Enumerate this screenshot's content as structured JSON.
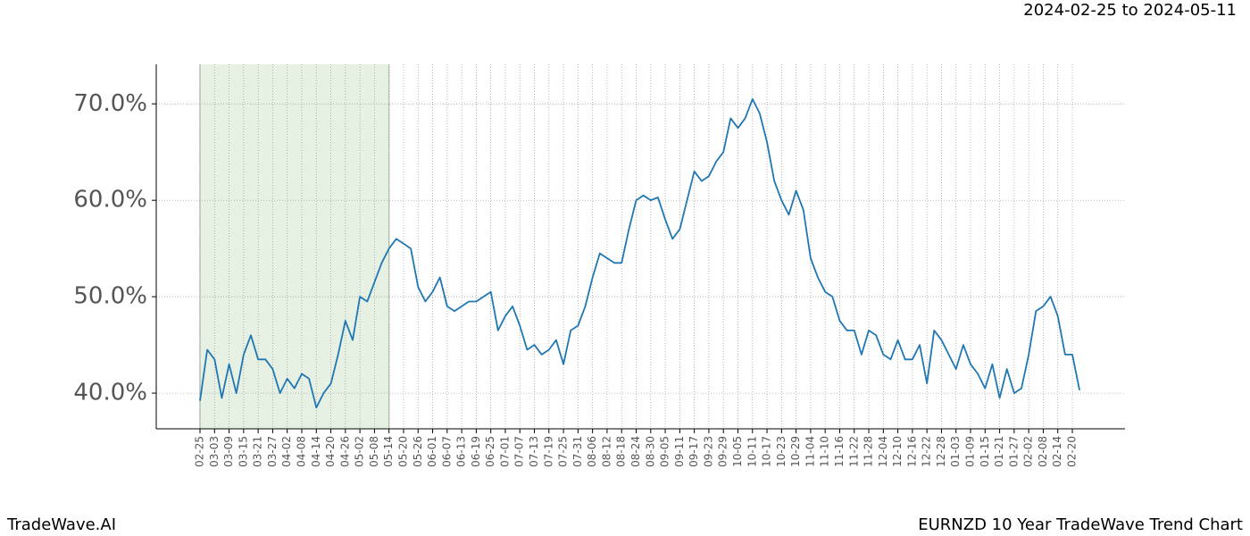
{
  "chart_data": {
    "type": "line",
    "title": "EURNZD 10 Year TradeWave Trend Chart",
    "subtitle": "2024-02-25 to 2024-05-11",
    "brand": "TradeWave.AI",
    "categories": [
      "02-25",
      null,
      "03-03",
      null,
      "03-09",
      null,
      "03-15",
      null,
      "03-21",
      null,
      "03-27",
      null,
      "04-02",
      null,
      "04-08",
      null,
      "04-14",
      null,
      "04-20",
      null,
      "04-26",
      null,
      "05-02",
      null,
      "05-08",
      null,
      "05-14",
      null,
      "05-20",
      null,
      "05-26",
      null,
      "06-01",
      null,
      "06-07",
      null,
      "06-13",
      null,
      "06-19",
      null,
      "06-25",
      null,
      "07-01",
      null,
      "07-07",
      null,
      "07-13",
      null,
      "07-19",
      null,
      "07-25",
      null,
      "07-31",
      null,
      "08-06",
      null,
      "08-12",
      null,
      "08-18",
      null,
      "08-24",
      null,
      "08-30",
      null,
      "09-05",
      null,
      "09-11",
      null,
      "09-17",
      null,
      "09-23",
      null,
      "09-29",
      null,
      "10-05",
      null,
      "10-11",
      null,
      "10-17",
      null,
      "10-23",
      null,
      "10-29",
      null,
      "11-04",
      null,
      "11-10",
      null,
      "11-16",
      null,
      "11-22",
      null,
      "11-28",
      null,
      "12-04",
      null,
      "12-10",
      null,
      "12-16",
      null,
      "12-22",
      null,
      "12-28",
      null,
      "01-03",
      null,
      "01-09",
      null,
      "01-15",
      null,
      "01-21",
      null,
      "01-27",
      null,
      "02-02",
      null,
      "02-08",
      null,
      "02-14",
      null,
      "02-20",
      null
    ],
    "series": [
      {
        "color": "#1f77b4",
        "values": [
          39.2,
          44.5,
          43.5,
          39.5,
          43,
          40,
          44,
          46,
          43.5,
          43.5,
          42.5,
          40,
          41.5,
          40.5,
          42,
          41.5,
          38.5,
          40,
          41,
          44,
          47.5,
          45.5,
          50,
          49.5,
          51.5,
          53.5,
          55,
          56,
          55.5,
          55,
          51,
          49.5,
          50.5,
          52,
          49,
          48.5,
          49,
          49.5,
          49.5,
          50,
          50.5,
          46.5,
          48,
          49,
          47,
          44.5,
          45,
          44,
          44.5,
          45.5,
          43,
          46.5,
          47,
          49,
          52,
          54.5,
          54,
          53.5,
          53.5,
          57,
          60,
          60.5,
          60,
          60.3,
          58,
          56,
          57,
          60,
          63,
          62,
          62.5,
          64,
          65,
          68.5,
          67.5,
          68.5,
          70.5,
          69,
          66,
          62,
          60,
          58.5,
          61,
          59,
          54,
          52,
          50.5,
          50,
          47.5,
          46.5,
          46.5,
          44,
          46.5,
          46,
          44,
          43.5,
          45.5,
          43.5,
          43.5,
          45,
          41,
          46.5,
          45.5,
          44,
          42.5,
          45,
          43,
          42,
          40.5,
          43,
          39.5,
          42.5,
          40,
          40.5,
          44,
          48.5,
          49,
          50,
          48,
          44,
          44,
          40.3
        ]
      }
    ],
    "shaded_x": [
      "02-25",
      "05-14"
    ],
    "shade_color": "#e6f0e3",
    "ylim": [
      36.3,
      74.1
    ],
    "yticks": [
      {
        "value": 40,
        "label": "40.0%"
      },
      {
        "value": 50,
        "label": "50.0%"
      },
      {
        "value": 60,
        "label": "60.0%"
      },
      {
        "value": 70,
        "label": "70.0%"
      }
    ],
    "grid": true
  }
}
